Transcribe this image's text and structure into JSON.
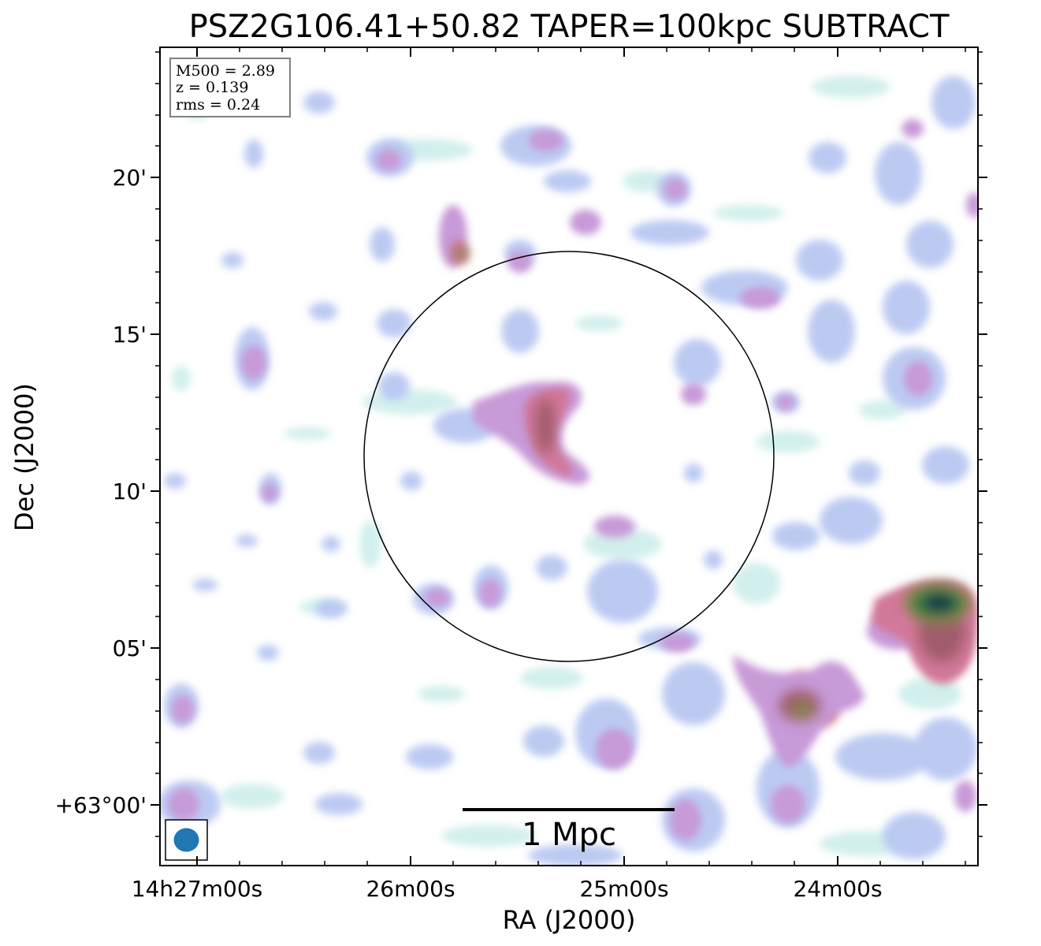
{
  "title": "PSZ2G106.41+50.82 TAPER=100kpc SUBTRACT",
  "info_box": {
    "lines": [
      "M500 = 2.89",
      "z = 0.139",
      "rms = 0.24"
    ]
  },
  "axes": {
    "xlabel": "RA (J2000)",
    "ylabel": "Dec (J2000)",
    "x_ticks": [
      "14h27m00s",
      "26m00s",
      "25m00s",
      "24m00s"
    ],
    "y_ticks": [
      "20'",
      "15'",
      "10'",
      "05'",
      "+63°00'"
    ]
  },
  "scale_bar": {
    "label": "1 Mpc"
  },
  "colors": {
    "faint": "#cdeeea",
    "light": "#b9c8f2",
    "medium": "#c79ad8",
    "pink": "#d2789a",
    "strong": "#a05c6a",
    "olive": "#7c8a3c",
    "green": "#2f7a45",
    "peak": "#143848",
    "beam": "#1f77b4"
  }
}
